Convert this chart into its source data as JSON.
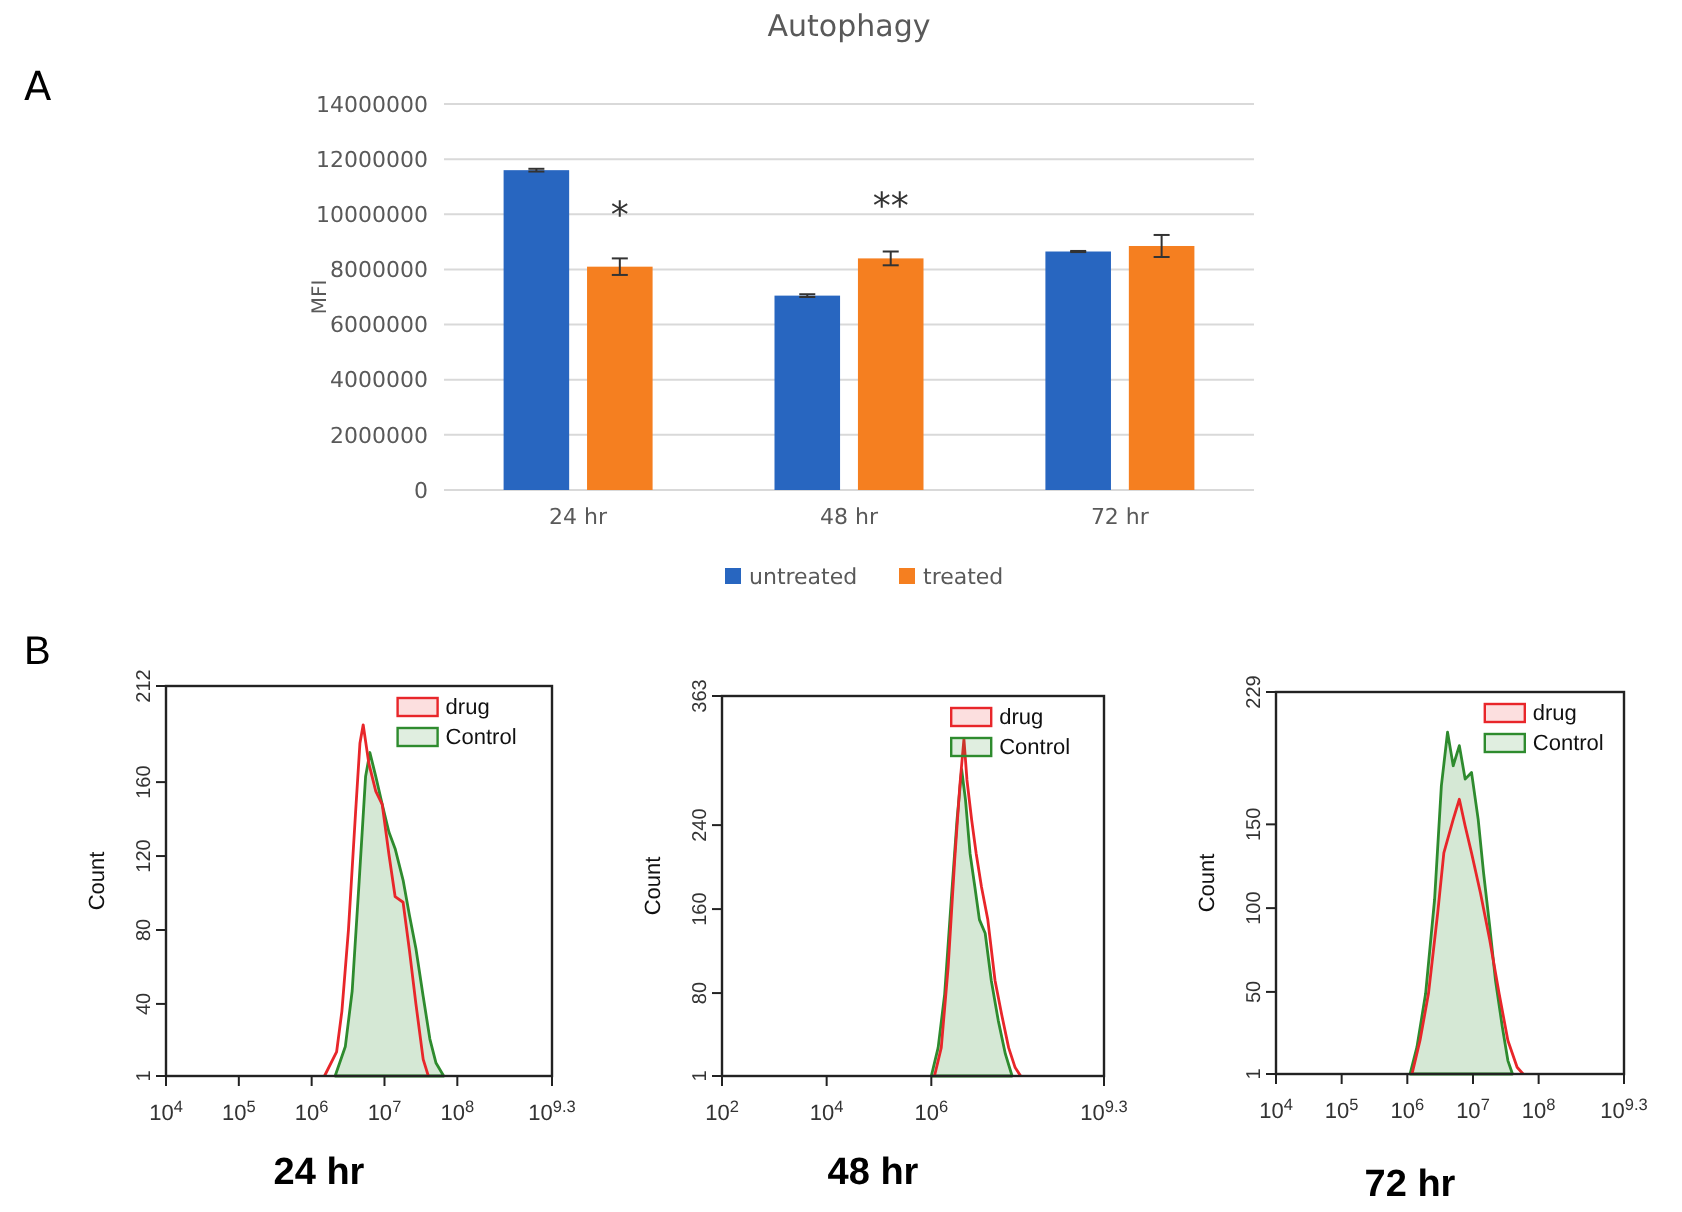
{
  "chart_data": [
    {
      "type": "bar",
      "title": "Autophagy",
      "ylabel": "MFI",
      "categories": [
        "24 hr",
        "48 hr",
        "72 hr"
      ],
      "series": [
        {
          "name": "untreated",
          "color": "#2866c0",
          "values": [
            11600000,
            7050000,
            8650000
          ],
          "errors": [
            50000,
            50000,
            20000
          ]
        },
        {
          "name": "treated",
          "color": "#f57f20",
          "values": [
            8100000,
            8400000,
            8850000
          ],
          "errors": [
            300000,
            250000,
            400000
          ]
        }
      ],
      "ylim": [
        0,
        14000000
      ],
      "yticks": [
        0,
        2000000,
        4000000,
        6000000,
        8000000,
        10000000,
        12000000,
        14000000
      ],
      "grid": "y",
      "legend": "bottom",
      "annotations": [
        "A",
        {
          "text": "*",
          "x": "24 hr",
          "y": 8100000
        },
        {
          "text": "**",
          "x": "48 hr",
          "y": 8400000
        }
      ]
    },
    {
      "type": "line",
      "xlabel": "24 hr",
      "ylabel": "Count",
      "log": "x",
      "legend": "top right",
      "xlim": [
        10000,
        1995262315
      ],
      "xticks": [
        {
          "value": 10000,
          "label": "10$^{4}$"
        },
        {
          "value": 100000,
          "label": "10$^{5}$"
        },
        {
          "value": 1000000,
          "label": "10$^{6}$"
        },
        {
          "value": 10000000,
          "label": "10$^{7}$"
        },
        {
          "value": 100000000,
          "label": "10$^{8}$"
        },
        {
          "value": 1995262315,
          "label": "10$^{9.3}$"
        }
      ],
      "ylim": [
        1,
        212
      ],
      "yticks": [
        1,
        40,
        80,
        120,
        160,
        212
      ],
      "series": [
        {
          "name": "drug",
          "color": "#e8262a",
          "x": [
            1500000,
            2200000,
            2600000,
            3200000,
            4000000,
            4600000,
            5100000,
            6100000,
            7600000,
            9300000,
            11500000,
            14000000,
            18000000,
            22000000,
            27000000,
            34000000,
            40000000
          ],
          "values": [
            1,
            14,
            36,
            80,
            143,
            181,
            191,
            170,
            155,
            148,
            121,
            98,
            95,
            69,
            40,
            10,
            1
          ]
        },
        {
          "name": "Control",
          "type": "area",
          "color": "#2e8b2e",
          "x": [
            2100000,
            2900000,
            3600000,
            4500000,
            5500000,
            6300000,
            7600000,
            9300000,
            11500000,
            14000000,
            18000000,
            22000000,
            27000000,
            34000000,
            42000000,
            51000000,
            65000000
          ],
          "values": [
            1,
            17,
            47,
            107,
            163,
            176,
            163,
            148,
            133,
            124,
            107,
            88,
            70,
            44,
            21,
            8,
            1
          ]
        }
      ],
      "annotations": [
        "B"
      ]
    },
    {
      "type": "line",
      "xlabel": "48 hr",
      "ylabel": "Count",
      "log": "x",
      "legend": "top right",
      "xlim": [
        100,
        1995262315
      ],
      "xticks": [
        {
          "value": 100,
          "label": "10$^{2}$"
        },
        {
          "value": 10000,
          "label": "10$^{4}$"
        },
        {
          "value": 1000000,
          "label": "10$^{6}$"
        },
        {
          "value": 1995262315,
          "label": "10$^{9.3}$"
        }
      ],
      "ylim": [
        1,
        363
      ],
      "yticks": [
        1,
        80,
        160,
        240,
        363
      ],
      "series": [
        {
          "name": "drug",
          "color": "#e8262a",
          "x": [
            1150000,
            1550000,
            2100000,
            2800000,
            3500000,
            4200000,
            4800000,
            5900000,
            7200000,
            9100000,
            12000000,
            16500000,
            22000000,
            30000000,
            40000000,
            51000000
          ],
          "values": [
            1,
            28,
            105,
            207,
            277,
            322,
            283,
            245,
            213,
            181,
            150,
            92,
            60,
            28,
            9,
            1
          ]
        },
        {
          "name": "Control",
          "type": "area",
          "color": "#2e8b2e",
          "x": [
            1000000,
            1350000,
            1800000,
            2400000,
            3100000,
            3800000,
            4500000,
            5500000,
            6800000,
            8300000,
            10700000,
            14000000,
            19000000,
            26000000,
            35000000
          ],
          "values": [
            1,
            28,
            79,
            168,
            245,
            293,
            264,
            213,
            181,
            150,
            137,
            92,
            54,
            22,
            1
          ]
        }
      ]
    },
    {
      "type": "line",
      "xlabel": "72 hr",
      "ylabel": "Count",
      "log": "x",
      "legend": "top right",
      "xlim": [
        10000,
        1995262315
      ],
      "xticks": [
        {
          "value": 10000,
          "label": "10$^{4}$"
        },
        {
          "value": 100000,
          "label": "10$^{5}$"
        },
        {
          "value": 1000000,
          "label": "10$^{6}$"
        },
        {
          "value": 10000000,
          "label": "10$^{7}$"
        },
        {
          "value": 100000000,
          "label": "10$^{8}$"
        },
        {
          "value": 1995262315,
          "label": "10$^{9.3}$"
        }
      ],
      "ylim": [
        1,
        229
      ],
      "yticks": [
        1,
        50,
        100,
        150,
        229
      ],
      "series": [
        {
          "name": "drug",
          "color": "#e8262a",
          "x": [
            1180000,
            1560000,
            2100000,
            2900000,
            3600000,
            5000000,
            6200000,
            7600000,
            9500000,
            13000000,
            18000000,
            25000000,
            34000000,
            47000000,
            58000000
          ],
          "values": [
            1,
            21,
            49,
            97,
            133,
            153,
            165,
            149,
            133,
            109,
            81,
            49,
            21,
            5,
            1
          ]
        },
        {
          "name": "Control",
          "type": "area",
          "color": "#2e8b2e",
          "x": [
            1100000,
            1400000,
            1900000,
            2600000,
            3300000,
            4100000,
            5000000,
            6200000,
            7600000,
            9500000,
            12000000,
            14500000,
            18000000,
            22000000,
            28000000,
            34000000,
            40000000
          ],
          "values": [
            1,
            17,
            49,
            105,
            173,
            205,
            185,
            197,
            177,
            181,
            153,
            121,
            89,
            57,
            29,
            9,
            1
          ]
        }
      ]
    }
  ]
}
